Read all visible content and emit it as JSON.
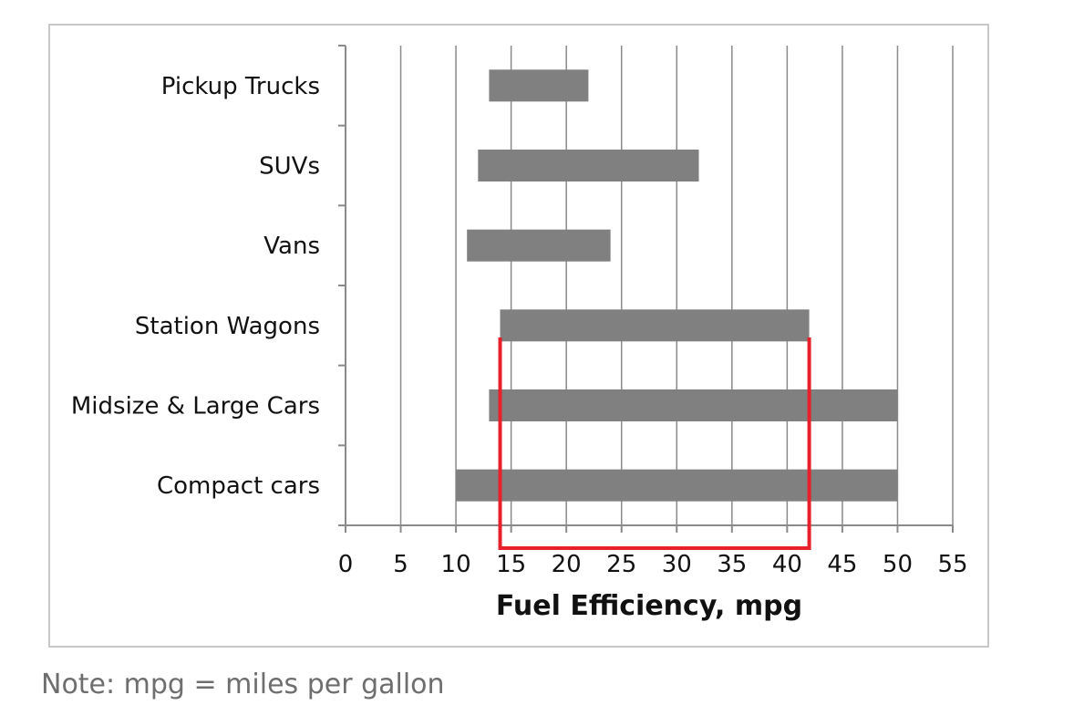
{
  "chart_data": {
    "type": "bar",
    "orientation": "horizontal",
    "subtype": "floating-range",
    "categories": [
      "Pickup Trucks",
      "SUVs",
      "Vans",
      "Station Wagons",
      "Midsize & Large Cars",
      "Compact cars"
    ],
    "series": [
      {
        "ranges": [
          [
            13,
            22
          ],
          [
            12,
            32
          ],
          [
            11,
            24
          ],
          [
            14,
            42
          ],
          [
            13,
            50
          ],
          [
            10,
            50
          ]
        ]
      }
    ],
    "xlabel": "Fuel Efficiency, mpg",
    "ylabel": "",
    "xlim": [
      0,
      55
    ],
    "xticks": [
      0,
      5,
      10,
      15,
      20,
      25,
      30,
      35,
      40,
      45,
      50,
      55
    ],
    "grid": "vertical",
    "bar_color": "#808080",
    "highlight": {
      "x_range": [
        14,
        42
      ],
      "color": "#e8202a"
    }
  },
  "note": "Note: mpg = miles per gallon"
}
